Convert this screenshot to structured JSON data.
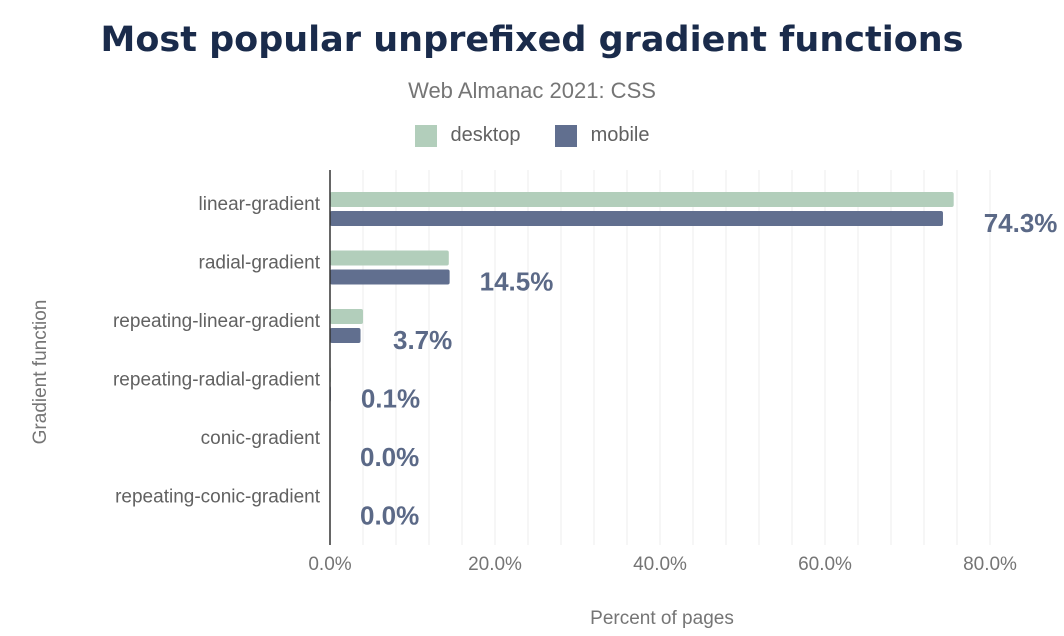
{
  "chart_data": {
    "type": "bar",
    "orientation": "horizontal",
    "title": "Most popular unprefixed gradient functions",
    "subtitle": "Web Almanac 2021: CSS",
    "xlabel": "Percent of pages",
    "ylabel": "Gradient function",
    "xlim": [
      0,
      80
    ],
    "x_ticks": [
      "0.0%",
      "20.0%",
      "40.0%",
      "60.0%",
      "80.0%"
    ],
    "grid": true,
    "legend_position": "top-center",
    "categories": [
      "linear-gradient",
      "radial-gradient",
      "repeating-linear-gradient",
      "repeating-radial-gradient",
      "conic-gradient",
      "repeating-conic-gradient"
    ],
    "series": [
      {
        "name": "desktop",
        "color": "#b2cebb",
        "values": [
          75.6,
          14.4,
          4.0,
          0.1,
          0.0,
          0.0
        ]
      },
      {
        "name": "mobile",
        "color": "#616f8f",
        "values": [
          74.3,
          14.5,
          3.7,
          0.1,
          0.0,
          0.0
        ]
      }
    ],
    "data_labels": [
      "74.3%",
      "14.5%",
      "3.7%",
      "0.1%",
      "0.0%",
      "0.0%"
    ],
    "data_label_color": "#5b6987"
  }
}
